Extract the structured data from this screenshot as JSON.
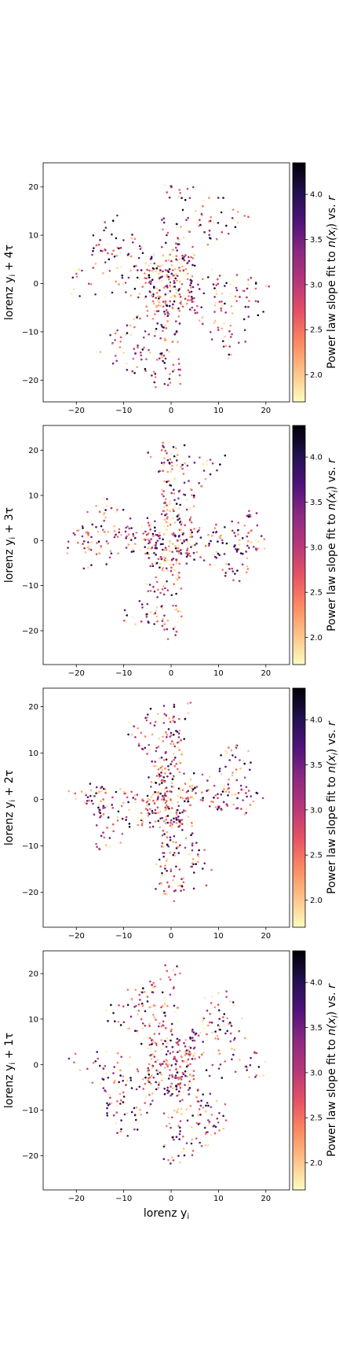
{
  "chart_data": [
    {
      "type": "scatter",
      "title": "",
      "ylabel": "lorenz y",
      "ylabel_sub": "i",
      "ylabel_shift": "+ 4τ",
      "xlim": [
        -27,
        25
      ],
      "ylim": [
        -24.5,
        25
      ],
      "x_ticks": [
        -20,
        -10,
        0,
        10,
        20
      ],
      "y_ticks": [
        -20,
        -10,
        0,
        10,
        20
      ],
      "grid": false,
      "seed": 11
    },
    {
      "type": "scatter",
      "title": "",
      "ylabel": "lorenz y",
      "ylabel_sub": "i",
      "ylabel_shift": "+ 3τ",
      "xlim": [
        -27,
        25
      ],
      "ylim": [
        -27.5,
        25.5
      ],
      "x_ticks": [
        -20,
        -10,
        0,
        10,
        20
      ],
      "y_ticks": [
        -20,
        -10,
        0,
        10,
        20
      ],
      "grid": false,
      "seed": 23
    },
    {
      "type": "scatter",
      "title": "",
      "ylabel": "lorenz y",
      "ylabel_sub": "i",
      "ylabel_shift": "+ 2τ",
      "xlim": [
        -27,
        25
      ],
      "ylim": [
        -27.5,
        24
      ],
      "x_ticks": [
        -20,
        -10,
        0,
        10,
        20
      ],
      "y_ticks": [
        -20,
        -10,
        0,
        10,
        20
      ],
      "grid": false,
      "seed": 37
    },
    {
      "type": "scatter",
      "title": "",
      "xlabel": "lorenz y",
      "xlabel_sub": "i",
      "ylabel": "lorenz y",
      "ylabel_sub": "i",
      "ylabel_shift": "+ 1τ",
      "xlim": [
        -27,
        25
      ],
      "ylim": [
        -27.5,
        25
      ],
      "x_ticks": [
        -20,
        -10,
        0,
        10,
        20
      ],
      "y_ticks": [
        -20,
        -10,
        0,
        10,
        20
      ],
      "grid": false,
      "seed": 51
    }
  ],
  "colorbar": {
    "label_prefix": "Power law slope fit to ",
    "label_var": "n(x",
    "label_var_sub": "i",
    "label_mid": ") vs. ",
    "label_r": "r",
    "range": [
      1.7,
      4.35
    ],
    "ticks": [
      2.0,
      2.5,
      3.0,
      3.5,
      4.0
    ],
    "tick_labels": [
      "2.0",
      "2.5",
      "3.0",
      "3.5",
      "4.0"
    ],
    "colormap": "magma_r",
    "colors": [
      "#fcfdbf",
      "#fec287",
      "#fb8861",
      "#e65164",
      "#b73779",
      "#8c2981",
      "#51127c",
      "#221150",
      "#000004"
    ]
  }
}
